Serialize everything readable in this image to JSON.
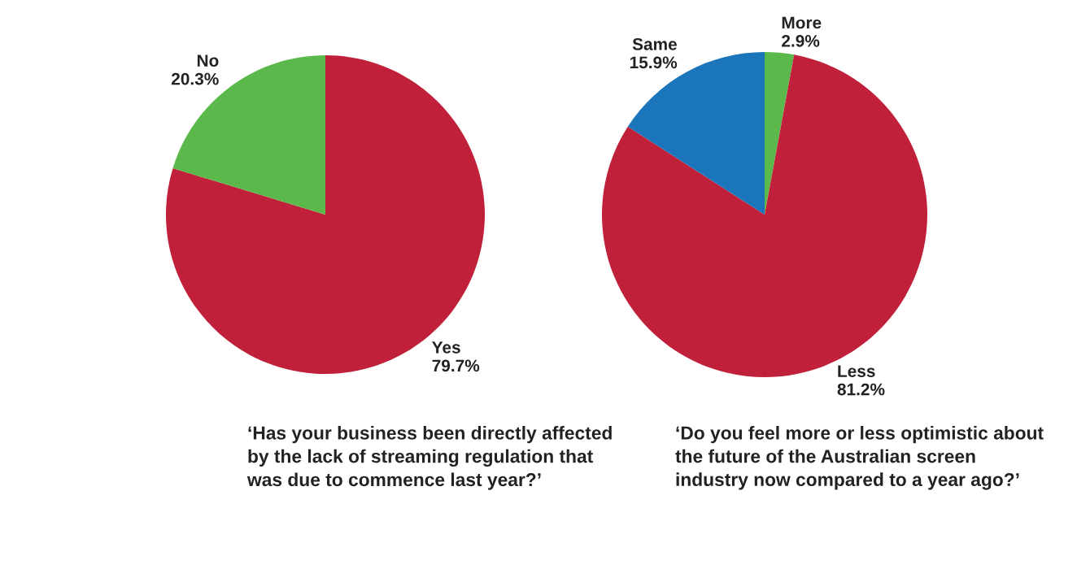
{
  "chart_data": [
    {
      "type": "pie",
      "title": "‘Has your business been directly affected\nby the lack of streaming regulation that\nwas due to commence last year?’",
      "categories": [
        "Yes",
        "No"
      ],
      "values": [
        79.7,
        20.3
      ],
      "colors": [
        "#c1203b",
        "#5bb84a"
      ],
      "value_labels": [
        "79.7%",
        "20.3%"
      ]
    },
    {
      "type": "pie",
      "title": "‘Do you feel more or less optimistic about\nthe future of the Australian screen\nindustry now compared to a year ago?’",
      "categories": [
        "More",
        "Less",
        "Same"
      ],
      "values": [
        2.9,
        81.2,
        15.9
      ],
      "colors": [
        "#5bb84a",
        "#c1203b",
        "#1b75bb"
      ],
      "value_labels": [
        "2.9%",
        "81.2%",
        "15.9%"
      ]
    }
  ]
}
